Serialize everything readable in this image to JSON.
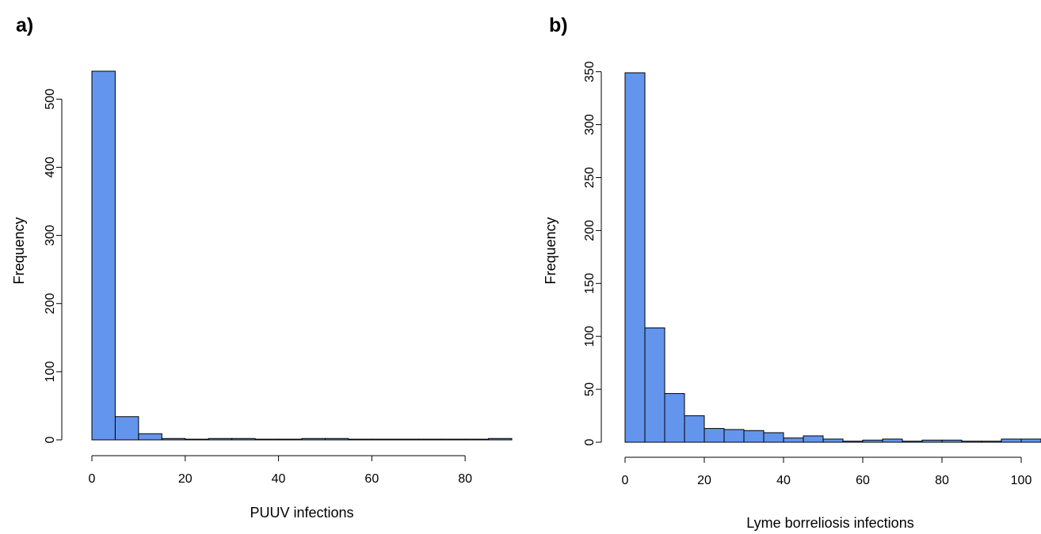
{
  "chart_data": [
    {
      "type": "bar",
      "panel_label": "a)",
      "title": "",
      "xlabel": "PUUV infections",
      "ylabel": "Frequency",
      "bin_width": 5,
      "bin_start": 0,
      "values": [
        541,
        34,
        9,
        2,
        1,
        2,
        2,
        1,
        1,
        2,
        2,
        1,
        1,
        1,
        1,
        1,
        1,
        2
      ],
      "xlim": [
        0,
        90
      ],
      "ylim": [
        0,
        541
      ],
      "xticks": [
        0,
        20,
        40,
        60,
        80
      ],
      "yticks": [
        0,
        100,
        200,
        300,
        400,
        500
      ],
      "legend": false,
      "grid": false,
      "colors": {
        "bar": "#6495ed"
      }
    },
    {
      "type": "bar",
      "panel_label": "b)",
      "title": "",
      "xlabel": "Lyme borreliosis infections",
      "ylabel": "Frequency",
      "bin_width": 5,
      "bin_start": 0,
      "values": [
        349,
        108,
        46,
        25,
        13,
        12,
        11,
        9,
        4,
        6,
        3,
        1,
        2,
        3,
        1,
        2,
        2,
        1,
        1,
        3,
        3
      ],
      "xlim": [
        0,
        105
      ],
      "ylim": [
        0,
        349
      ],
      "xticks": [
        0,
        20,
        40,
        60,
        80,
        100
      ],
      "yticks": [
        0,
        50,
        100,
        150,
        200,
        250,
        300,
        350
      ],
      "legend": false,
      "grid": false,
      "colors": {
        "bar": "#6495ed"
      }
    }
  ]
}
